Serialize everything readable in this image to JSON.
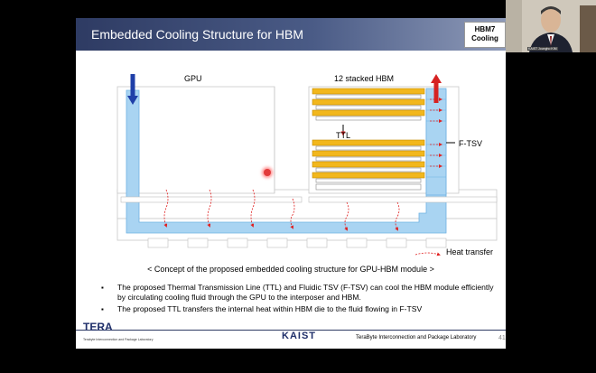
{
  "slide": {
    "title": "Embedded Cooling Structure for HBM",
    "badge_line1": "HBM7",
    "badge_line2": "Cooling",
    "page_number": "41"
  },
  "diagram": {
    "gpu_label": "GPU",
    "hbm_label": "12 stacked HBM",
    "ttl_label": "TTL",
    "ftsv_label": "F-TSV",
    "legend_label": "Heat transfer",
    "caption": "< Concept of the proposed embedded cooling structure for GPU-HBM module >"
  },
  "bullets": [
    "The proposed Thermal Transmission Line (TTL) and Fluidic TSV (F-TSV) can cool the HBM module efficiently by circulating cooling fluid through the GPU to the interposer and HBM.",
    "The proposed TTL transfers the internal heat within HBM die to the fluid flowing in F-TSV"
  ],
  "footer": {
    "tera_logo": "TERA",
    "tera_sub": "Terabyte Interconnection and Package Laboratory",
    "kaist_logo": "KAIST",
    "lab_name": "TeraByte Interconnection and Package Laboratory"
  },
  "webcam": {
    "tag": "KAIST Joungho KIM"
  },
  "colors": {
    "title_bar": "#2e3b63",
    "fluid": "#a9d4f2",
    "fluid_border": "#6fb2e3",
    "hbm_die": "#f2b71c",
    "inflow_arrow": "#1f3fa8",
    "outflow_arrow": "#d62222",
    "heat_arrow": "#e02020"
  }
}
